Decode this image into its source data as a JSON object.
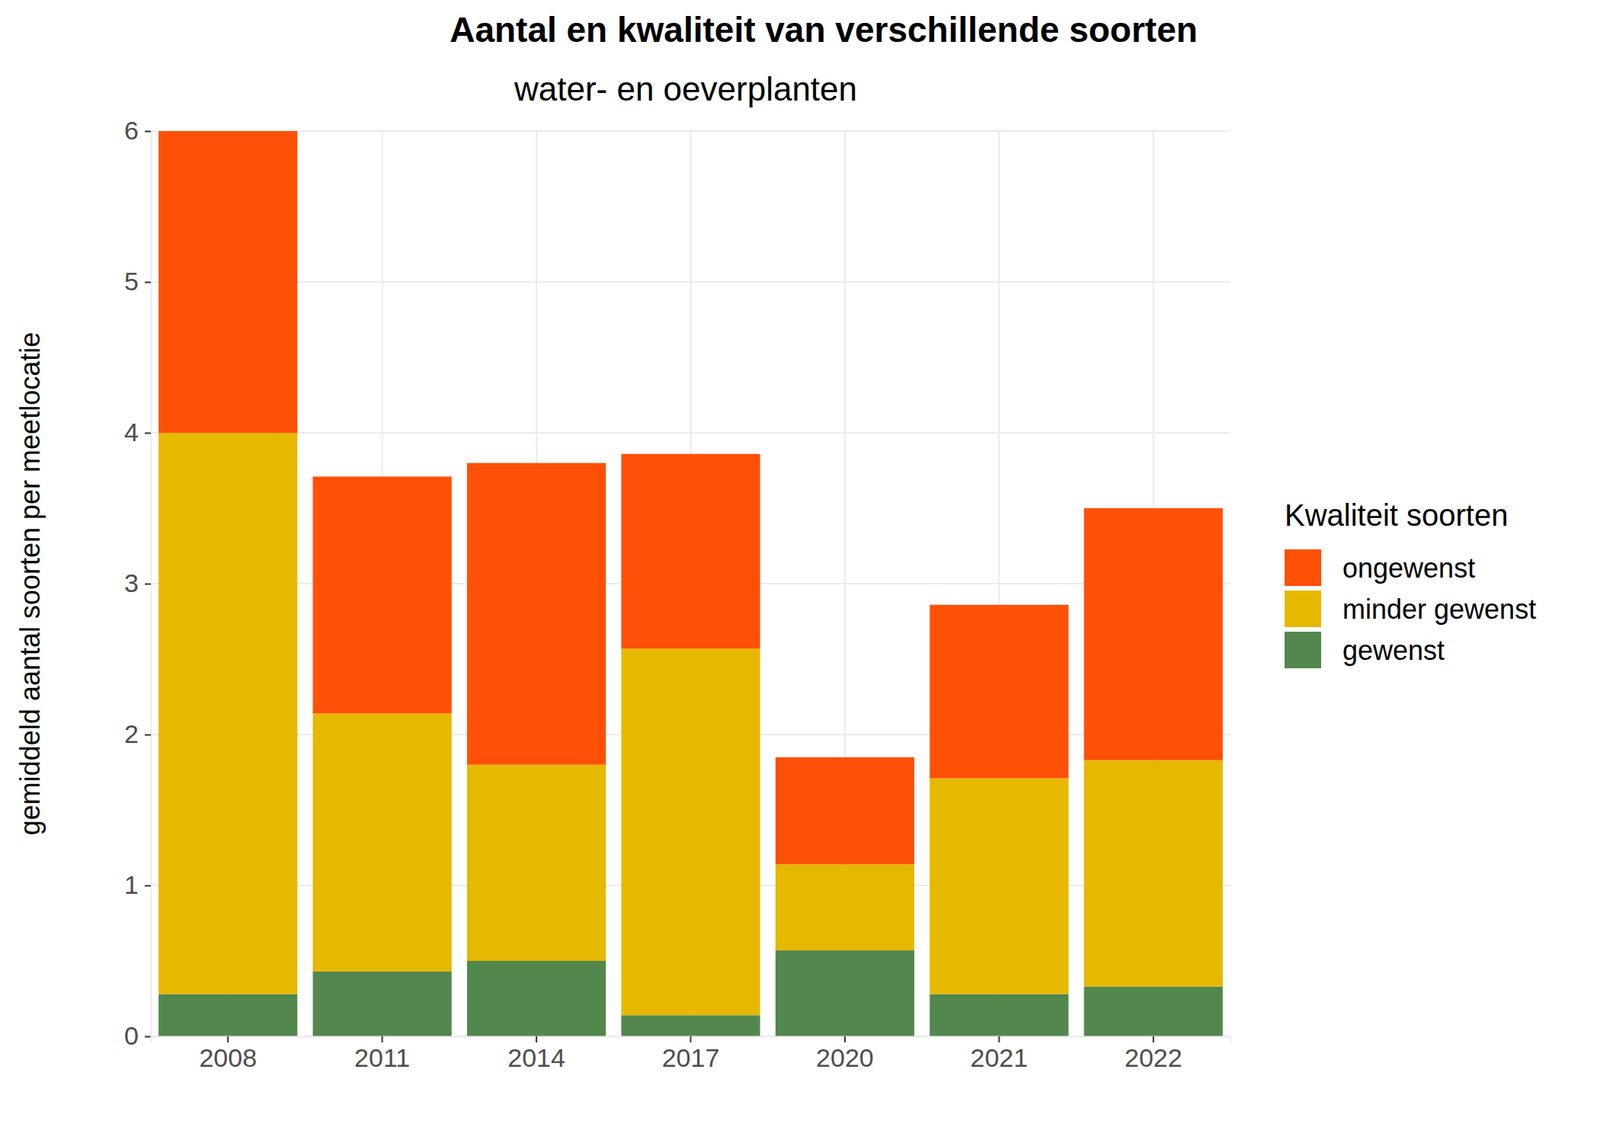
{
  "chart_data": {
    "type": "bar",
    "stacked": true,
    "title": "Aantal en kwaliteit van verschillende soorten",
    "subtitle": "water- en oeverplanten",
    "y_label": "gemiddeld aantal soorten per meetlocatie",
    "legend_title": "Kwaliteit soorten",
    "legend": "right",
    "grid": true,
    "categories": [
      "2008",
      "2011",
      "2014",
      "2017",
      "2020",
      "2021",
      "2022"
    ],
    "series": [
      {
        "name": "gewenst",
        "color": "#52874d",
        "values": [
          0.28,
          0.43,
          0.5,
          0.14,
          0.57,
          0.28,
          0.33
        ]
      },
      {
        "name": "minder gewenst",
        "color": "#e6b800",
        "values": [
          3.72,
          1.71,
          1.3,
          2.43,
          0.57,
          1.43,
          1.5
        ]
      },
      {
        "name": "ongewenst",
        "color": "#ff5008",
        "values": [
          2.0,
          1.57,
          2.0,
          1.29,
          0.71,
          1.15,
          1.67
        ]
      }
    ],
    "ylim": [
      0,
      6
    ],
    "yticks": [
      0,
      1,
      2,
      3,
      4,
      5,
      6
    ]
  }
}
